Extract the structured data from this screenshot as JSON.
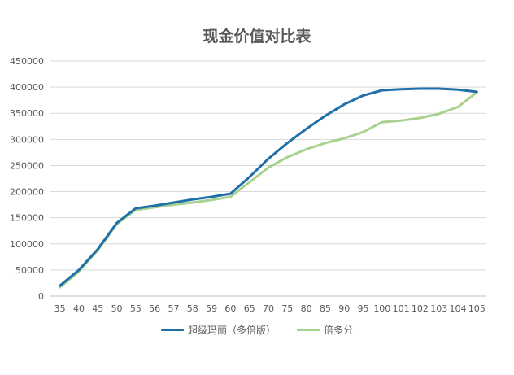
{
  "chart_data": {
    "type": "line",
    "title": "现金价值对比表",
    "xlabel": "",
    "ylabel": "",
    "categories": [
      "35",
      "40",
      "45",
      "50",
      "55",
      "56",
      "57",
      "58",
      "59",
      "60",
      "65",
      "70",
      "75",
      "80",
      "85",
      "90",
      "95",
      "100",
      "101",
      "102",
      "103",
      "104",
      "105"
    ],
    "ylim": [
      0,
      450000
    ],
    "yticks": [
      "0",
      "50000",
      "100000",
      "150000",
      "200000",
      "250000",
      "300000",
      "350000",
      "400000",
      "450000"
    ],
    "grid": true,
    "legend_position": "bottom",
    "series": [
      {
        "name": "超级玛丽（多倍版）",
        "color": "#1F6FA8",
        "values": [
          20000,
          50000,
          90000,
          140000,
          168000,
          173000,
          179000,
          185000,
          190000,
          196000,
          228000,
          263000,
          293000,
          320000,
          345000,
          367000,
          384000,
          394000,
          396000,
          397000,
          397000,
          395000,
          391000
        ]
      },
      {
        "name": "倍多分",
        "color": "#A9D18E",
        "values": [
          17000,
          47000,
          88000,
          138000,
          165000,
          170000,
          175000,
          179000,
          184000,
          190000,
          218000,
          246000,
          266000,
          281000,
          293000,
          302000,
          314000,
          333000,
          336000,
          341000,
          349000,
          362000,
          390000
        ]
      }
    ]
  }
}
